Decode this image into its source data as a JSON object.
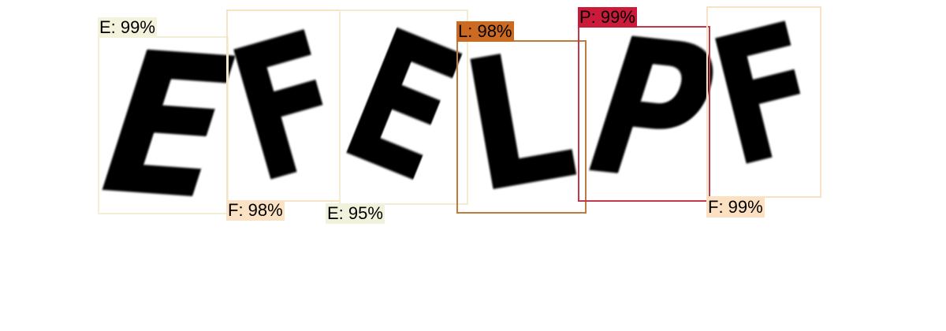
{
  "glyphs": [
    {
      "letter": "E"
    },
    {
      "letter": "F"
    },
    {
      "letter": "E"
    },
    {
      "letter": "L"
    },
    {
      "letter": "P"
    },
    {
      "letter": "F"
    }
  ],
  "detections": [
    {
      "label": "E: 99%",
      "box_color": "#f3efd6",
      "tag_color": "#f3f2dd"
    },
    {
      "label": "F: 98%",
      "box_color": "#f7e4c4",
      "tag_color": "#fbe2c4"
    },
    {
      "label": "E: 95%",
      "box_color": "#f3ecd4",
      "tag_color": "#f1f2dc"
    },
    {
      "label": "L: 98%",
      "box_color": "#c07a3c",
      "tag_color": "#cd6a22"
    },
    {
      "label": "P: 99%",
      "box_color": "#c4384e",
      "tag_color": "#cc1a3a"
    },
    {
      "label": "F: 99%",
      "box_color": "#f7e2c6",
      "tag_color": "#fbe0c2"
    }
  ]
}
